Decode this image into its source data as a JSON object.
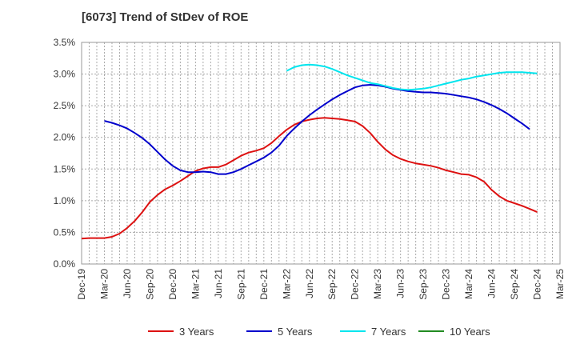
{
  "chart_data": {
    "type": "line",
    "title": "[6073]  Trend of StDev of ROE",
    "xlabel": "",
    "ylabel": "",
    "ylim": [
      0,
      3.5
    ],
    "yticks": [
      "0.0%",
      "0.5%",
      "1.0%",
      "1.5%",
      "2.0%",
      "2.5%",
      "3.0%",
      "3.5%"
    ],
    "xlim": [
      "2019-12",
      "2025-03"
    ],
    "xticks": [
      "Dec-19",
      "Mar-20",
      "Jun-20",
      "Sep-20",
      "Dec-20",
      "Mar-21",
      "Jun-21",
      "Sep-21",
      "Dec-21",
      "Mar-22",
      "Jun-22",
      "Sep-22",
      "Dec-22",
      "Mar-23",
      "Jun-23",
      "Sep-23",
      "Dec-23",
      "Mar-24",
      "Jun-24",
      "Sep-24",
      "Dec-24",
      "Mar-25"
    ],
    "grid": true,
    "legend_position": "bottom",
    "series": [
      {
        "name": "3 Years",
        "color": "#dd1111",
        "points": [
          [
            "2019-12",
            0.4
          ],
          [
            "2020-01",
            0.41
          ],
          [
            "2020-02",
            0.41
          ],
          [
            "2020-03",
            0.41
          ],
          [
            "2020-04",
            0.43
          ],
          [
            "2020-05",
            0.48
          ],
          [
            "2020-06",
            0.57
          ],
          [
            "2020-07",
            0.68
          ],
          [
            "2020-08",
            0.82
          ],
          [
            "2020-09",
            0.98
          ],
          [
            "2020-10",
            1.09
          ],
          [
            "2020-11",
            1.18
          ],
          [
            "2020-12",
            1.24
          ],
          [
            "2021-01",
            1.31
          ],
          [
            "2021-02",
            1.39
          ],
          [
            "2021-03",
            1.47
          ],
          [
            "2021-04",
            1.51
          ],
          [
            "2021-05",
            1.53
          ],
          [
            "2021-06",
            1.53
          ],
          [
            "2021-07",
            1.57
          ],
          [
            "2021-08",
            1.64
          ],
          [
            "2021-09",
            1.71
          ],
          [
            "2021-10",
            1.76
          ],
          [
            "2021-11",
            1.79
          ],
          [
            "2021-12",
            1.83
          ],
          [
            "2022-01",
            1.91
          ],
          [
            "2022-02",
            2.02
          ],
          [
            "2022-03",
            2.12
          ],
          [
            "2022-04",
            2.2
          ],
          [
            "2022-05",
            2.25
          ],
          [
            "2022-06",
            2.28
          ],
          [
            "2022-07",
            2.3
          ],
          [
            "2022-08",
            2.31
          ],
          [
            "2022-09",
            2.3
          ],
          [
            "2022-10",
            2.29
          ],
          [
            "2022-11",
            2.27
          ],
          [
            "2022-12",
            2.25
          ],
          [
            "2023-01",
            2.18
          ],
          [
            "2023-02",
            2.07
          ],
          [
            "2023-03",
            1.93
          ],
          [
            "2023-04",
            1.81
          ],
          [
            "2023-05",
            1.72
          ],
          [
            "2023-06",
            1.66
          ],
          [
            "2023-07",
            1.62
          ],
          [
            "2023-08",
            1.59
          ],
          [
            "2023-09",
            1.57
          ],
          [
            "2023-10",
            1.55
          ],
          [
            "2023-11",
            1.52
          ],
          [
            "2023-12",
            1.48
          ],
          [
            "2024-01",
            1.45
          ],
          [
            "2024-02",
            1.42
          ],
          [
            "2024-03",
            1.41
          ],
          [
            "2024-04",
            1.37
          ],
          [
            "2024-05",
            1.3
          ],
          [
            "2024-06",
            1.17
          ],
          [
            "2024-07",
            1.07
          ],
          [
            "2024-08",
            1.0
          ],
          [
            "2024-09",
            0.96
          ],
          [
            "2024-10",
            0.92
          ],
          [
            "2024-11",
            0.87
          ],
          [
            "2024-12",
            0.82
          ]
        ]
      },
      {
        "name": "5 Years",
        "color": "#0000cc",
        "points": [
          [
            "2020-03",
            2.26
          ],
          [
            "2020-04",
            2.23
          ],
          [
            "2020-05",
            2.19
          ],
          [
            "2020-06",
            2.14
          ],
          [
            "2020-07",
            2.07
          ],
          [
            "2020-08",
            1.99
          ],
          [
            "2020-09",
            1.89
          ],
          [
            "2020-10",
            1.77
          ],
          [
            "2020-11",
            1.65
          ],
          [
            "2020-12",
            1.55
          ],
          [
            "2021-01",
            1.48
          ],
          [
            "2021-02",
            1.45
          ],
          [
            "2021-03",
            1.45
          ],
          [
            "2021-04",
            1.46
          ],
          [
            "2021-05",
            1.45
          ],
          [
            "2021-06",
            1.42
          ],
          [
            "2021-07",
            1.42
          ],
          [
            "2021-08",
            1.45
          ],
          [
            "2021-09",
            1.5
          ],
          [
            "2021-10",
            1.56
          ],
          [
            "2021-11",
            1.62
          ],
          [
            "2021-12",
            1.68
          ],
          [
            "2022-01",
            1.76
          ],
          [
            "2022-02",
            1.87
          ],
          [
            "2022-03",
            2.02
          ],
          [
            "2022-04",
            2.14
          ],
          [
            "2022-05",
            2.25
          ],
          [
            "2022-06",
            2.35
          ],
          [
            "2022-07",
            2.44
          ],
          [
            "2022-08",
            2.52
          ],
          [
            "2022-09",
            2.6
          ],
          [
            "2022-10",
            2.67
          ],
          [
            "2022-11",
            2.73
          ],
          [
            "2022-12",
            2.79
          ],
          [
            "2023-01",
            2.82
          ],
          [
            "2023-02",
            2.83
          ],
          [
            "2023-03",
            2.82
          ],
          [
            "2023-04",
            2.8
          ],
          [
            "2023-05",
            2.77
          ],
          [
            "2023-06",
            2.75
          ],
          [
            "2023-07",
            2.73
          ],
          [
            "2023-08",
            2.72
          ],
          [
            "2023-09",
            2.71
          ],
          [
            "2023-10",
            2.71
          ],
          [
            "2023-11",
            2.7
          ],
          [
            "2023-12",
            2.69
          ],
          [
            "2024-01",
            2.67
          ],
          [
            "2024-02",
            2.65
          ],
          [
            "2024-03",
            2.63
          ],
          [
            "2024-04",
            2.6
          ],
          [
            "2024-05",
            2.56
          ],
          [
            "2024-06",
            2.51
          ],
          [
            "2024-07",
            2.45
          ],
          [
            "2024-08",
            2.38
          ],
          [
            "2024-09",
            2.3
          ],
          [
            "2024-10",
            2.22
          ],
          [
            "2024-11",
            2.13
          ]
        ]
      },
      {
        "name": "7 Years",
        "color": "#00e5ee",
        "points": [
          [
            "2022-03",
            3.05
          ],
          [
            "2022-04",
            3.11
          ],
          [
            "2022-05",
            3.14
          ],
          [
            "2022-06",
            3.15
          ],
          [
            "2022-07",
            3.14
          ],
          [
            "2022-08",
            3.12
          ],
          [
            "2022-09",
            3.08
          ],
          [
            "2022-10",
            3.03
          ],
          [
            "2022-11",
            2.98
          ],
          [
            "2022-12",
            2.94
          ],
          [
            "2023-01",
            2.9
          ],
          [
            "2023-02",
            2.86
          ],
          [
            "2023-03",
            2.84
          ],
          [
            "2023-04",
            2.81
          ],
          [
            "2023-05",
            2.78
          ],
          [
            "2023-06",
            2.76
          ],
          [
            "2023-07",
            2.75
          ],
          [
            "2023-08",
            2.76
          ],
          [
            "2023-09",
            2.77
          ],
          [
            "2023-10",
            2.79
          ],
          [
            "2023-11",
            2.82
          ],
          [
            "2023-12",
            2.85
          ],
          [
            "2024-01",
            2.88
          ],
          [
            "2024-02",
            2.91
          ],
          [
            "2024-03",
            2.93
          ],
          [
            "2024-04",
            2.96
          ],
          [
            "2024-05",
            2.98
          ],
          [
            "2024-06",
            3.0
          ],
          [
            "2024-07",
            3.02
          ],
          [
            "2024-08",
            3.03
          ],
          [
            "2024-09",
            3.03
          ],
          [
            "2024-10",
            3.03
          ],
          [
            "2024-11",
            3.02
          ],
          [
            "2024-12",
            3.01
          ]
        ]
      },
      {
        "name": "10 Years",
        "color": "#228b22",
        "points": []
      }
    ]
  }
}
